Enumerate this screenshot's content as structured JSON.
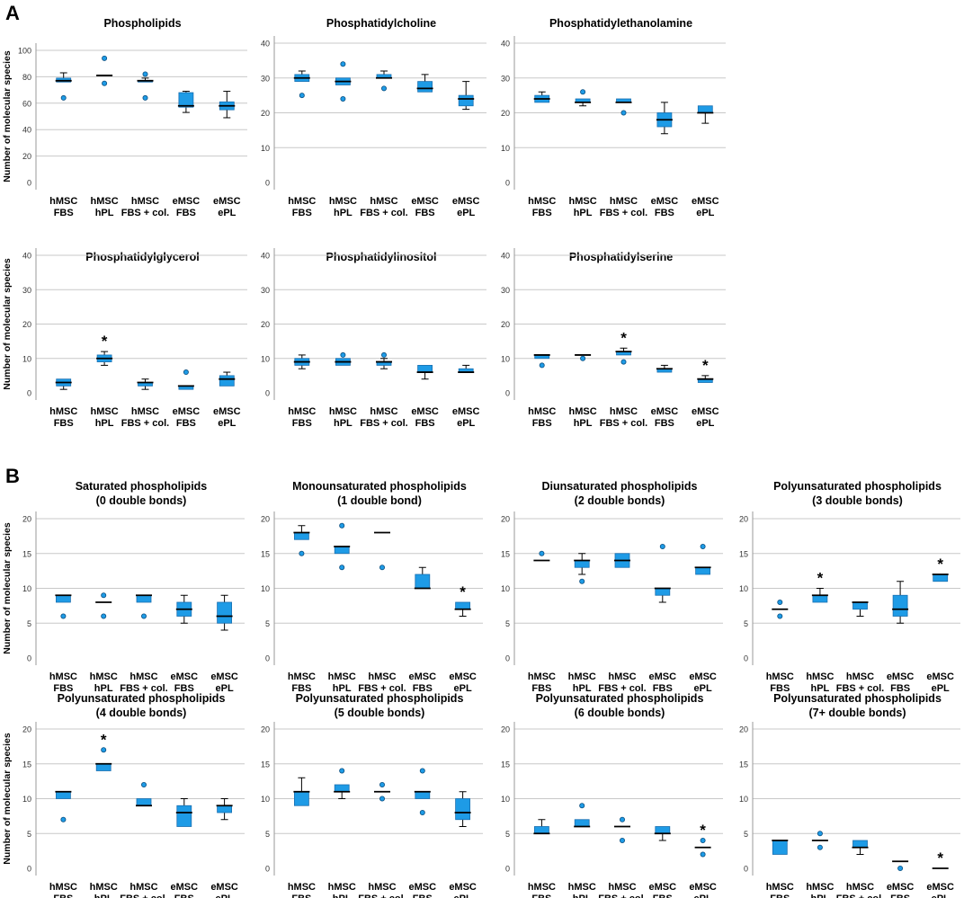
{
  "panel_labels": [
    "A",
    "B"
  ],
  "style": {
    "box_fill": "#1e9be6",
    "box_stroke": "#1a6fb0",
    "outlier_fill": "#1e9be6",
    "grid": "#c8c8c8",
    "axis": "#9a9a9a",
    "text": "#000000"
  },
  "y_axis_label": "Number of molecular species",
  "groups": [
    {
      "line1": "hMSC",
      "line2": "FBS"
    },
    {
      "line1": "hMSC",
      "line2": "hPL"
    },
    {
      "line1": "hMSC",
      "line2": "FBS + col."
    },
    {
      "line1": "eMSC",
      "line2": "FBS"
    },
    {
      "line1": "eMSC",
      "line2": "ePL"
    }
  ],
  "chart_data": [
    {
      "type": "boxplot",
      "title": [
        "Phospholipids"
      ],
      "ylim": [
        0,
        100
      ],
      "yticks": [
        0,
        20,
        40,
        60,
        80,
        100
      ],
      "boxes": [
        {
          "min": 76,
          "q1": 76,
          "median": 77,
          "q3": 79,
          "max": 83,
          "outliers": [
            64
          ]
        },
        {
          "min": 81,
          "q1": 81,
          "median": 81,
          "q3": 81,
          "max": 81,
          "outliers": [
            75,
            94
          ]
        },
        {
          "min": 76,
          "q1": 76,
          "median": 77,
          "q3": 77,
          "max": 79,
          "outliers": [
            64,
            82
          ]
        },
        {
          "min": 53,
          "q1": 57,
          "median": 58,
          "q3": 68,
          "max": 69,
          "outliers": []
        },
        {
          "min": 49,
          "q1": 55,
          "median": 58,
          "q3": 61,
          "max": 69,
          "outliers": []
        }
      ],
      "significant": []
    },
    {
      "type": "boxplot",
      "title": [
        "Phosphatidylcholine"
      ],
      "ylim": [
        0,
        40
      ],
      "yticks": [
        0,
        10,
        20,
        30,
        40
      ],
      "boxes": [
        {
          "min": 29,
          "q1": 29,
          "median": 30,
          "q3": 31,
          "max": 32,
          "outliers": [
            25
          ]
        },
        {
          "min": 28,
          "q1": 28,
          "median": 29,
          "q3": 30,
          "max": 30,
          "outliers": [
            24,
            34
          ]
        },
        {
          "min": 30,
          "q1": 30,
          "median": 30,
          "q3": 31,
          "max": 32,
          "outliers": [
            27
          ]
        },
        {
          "min": 26,
          "q1": 26,
          "median": 27,
          "q3": 29,
          "max": 31,
          "outliers": []
        },
        {
          "min": 21,
          "q1": 22,
          "median": 24,
          "q3": 25,
          "max": 29,
          "outliers": []
        }
      ],
      "significant": []
    },
    {
      "type": "boxplot",
      "title": [
        "Phosphatidylethanolamine"
      ],
      "ylim": [
        0,
        40
      ],
      "yticks": [
        0,
        10,
        20,
        30,
        40
      ],
      "boxes": [
        {
          "min": 23,
          "q1": 23,
          "median": 24,
          "q3": 25,
          "max": 26,
          "outliers": []
        },
        {
          "min": 22,
          "q1": 23,
          "median": 23,
          "q3": 24,
          "max": 24,
          "outliers": [
            26
          ]
        },
        {
          "min": 23,
          "q1": 23,
          "median": 23,
          "q3": 24,
          "max": 24,
          "outliers": [
            20
          ]
        },
        {
          "min": 14,
          "q1": 16,
          "median": 18,
          "q3": 20,
          "max": 23,
          "outliers": []
        },
        {
          "min": 17,
          "q1": 20,
          "median": 20,
          "q3": 22,
          "max": 22,
          "outliers": []
        }
      ],
      "significant": []
    },
    {
      "type": "boxplot",
      "title": [
        "Phosphatidylglycerol"
      ],
      "ylim": [
        0,
        40
      ],
      "yticks": [
        0,
        10,
        20,
        30,
        40
      ],
      "boxes": [
        {
          "min": 1,
          "q1": 2,
          "median": 3,
          "q3": 4,
          "max": 4,
          "outliers": []
        },
        {
          "min": 8,
          "q1": 9,
          "median": 10,
          "q3": 11,
          "max": 12,
          "outliers": []
        },
        {
          "min": 1,
          "q1": 2,
          "median": 3,
          "q3": 3,
          "max": 4,
          "outliers": []
        },
        {
          "min": 1,
          "q1": 1,
          "median": 2,
          "q3": 2,
          "max": 2,
          "outliers": [
            6
          ]
        },
        {
          "min": 2,
          "q1": 2,
          "median": 4,
          "q3": 5,
          "max": 6,
          "outliers": []
        }
      ],
      "significant": [
        1
      ]
    },
    {
      "type": "boxplot",
      "title": [
        "Phosphatidylinositol"
      ],
      "ylim": [
        0,
        40
      ],
      "yticks": [
        0,
        10,
        20,
        30,
        40
      ],
      "boxes": [
        {
          "min": 7,
          "q1": 8,
          "median": 9,
          "q3": 10,
          "max": 11,
          "outliers": []
        },
        {
          "min": 8,
          "q1": 8,
          "median": 9,
          "q3": 10,
          "max": 10,
          "outliers": [
            11
          ]
        },
        {
          "min": 7,
          "q1": 8,
          "median": 9,
          "q3": 9,
          "max": 10,
          "outliers": [
            11
          ]
        },
        {
          "min": 4,
          "q1": 6,
          "median": 6,
          "q3": 8,
          "max": 8,
          "outliers": []
        },
        {
          "min": 6,
          "q1": 6,
          "median": 6,
          "q3": 7,
          "max": 8,
          "outliers": []
        }
      ],
      "significant": []
    },
    {
      "type": "boxplot",
      "title": [
        "Phosphatidylserine"
      ],
      "ylim": [
        0,
        40
      ],
      "yticks": [
        0,
        10,
        20,
        30,
        40
      ],
      "boxes": [
        {
          "min": 10,
          "q1": 10,
          "median": 11,
          "q3": 11,
          "max": 11,
          "outliers": [
            8
          ]
        },
        {
          "min": 11,
          "q1": 11,
          "median": 11,
          "q3": 11,
          "max": 11,
          "outliers": [
            10
          ]
        },
        {
          "min": 11,
          "q1": 11,
          "median": 12,
          "q3": 12,
          "max": 13,
          "outliers": [
            9
          ]
        },
        {
          "min": 6,
          "q1": 6,
          "median": 7,
          "q3": 7,
          "max": 8,
          "outliers": []
        },
        {
          "min": 3,
          "q1": 3,
          "median": 4,
          "q3": 4,
          "max": 5,
          "outliers": []
        }
      ],
      "significant": [
        2,
        4
      ]
    },
    {
      "type": "boxplot",
      "title": [
        "Saturated phospholipids",
        "(0 double bonds)"
      ],
      "ylim": [
        0,
        20
      ],
      "yticks": [
        0,
        5,
        10,
        15,
        20
      ],
      "boxes": [
        {
          "min": 8,
          "q1": 8,
          "median": 9,
          "q3": 9,
          "max": 9,
          "outliers": [
            6
          ]
        },
        {
          "min": 8,
          "q1": 8,
          "median": 8,
          "q3": 8,
          "max": 8,
          "outliers": [
            6,
            9
          ]
        },
        {
          "min": 8,
          "q1": 8,
          "median": 9,
          "q3": 9,
          "max": 9,
          "outliers": [
            6
          ]
        },
        {
          "min": 5,
          "q1": 6,
          "median": 7,
          "q3": 8,
          "max": 9,
          "outliers": []
        },
        {
          "min": 4,
          "q1": 5,
          "median": 6,
          "q3": 8,
          "max": 9,
          "outliers": []
        }
      ],
      "significant": []
    },
    {
      "type": "boxplot",
      "title": [
        "Monounsaturated phospholipids",
        "(1 double bond)"
      ],
      "ylim": [
        0,
        20
      ],
      "yticks": [
        0,
        5,
        10,
        15,
        20
      ],
      "boxes": [
        {
          "min": 17,
          "q1": 17,
          "median": 18,
          "q3": 18,
          "max": 19,
          "outliers": [
            15
          ]
        },
        {
          "min": 15,
          "q1": 15,
          "median": 16,
          "q3": 16,
          "max": 16,
          "outliers": [
            13,
            19
          ]
        },
        {
          "min": 18,
          "q1": 18,
          "median": 18,
          "q3": 18,
          "max": 18,
          "outliers": [
            13
          ]
        },
        {
          "min": 10,
          "q1": 10,
          "median": 10,
          "q3": 12,
          "max": 13,
          "outliers": []
        },
        {
          "min": 6,
          "q1": 7,
          "median": 7,
          "q3": 8,
          "max": 8,
          "outliers": []
        }
      ],
      "significant": [
        4
      ]
    },
    {
      "type": "boxplot",
      "title": [
        "Diunsaturated phospholipids",
        "(2 double bonds)"
      ],
      "ylim": [
        0,
        20
      ],
      "yticks": [
        0,
        5,
        10,
        15,
        20
      ],
      "boxes": [
        {
          "min": 14,
          "q1": 14,
          "median": 14,
          "q3": 14,
          "max": 14,
          "outliers": [
            15
          ]
        },
        {
          "min": 12,
          "q1": 13,
          "median": 14,
          "q3": 14,
          "max": 15,
          "outliers": [
            11
          ]
        },
        {
          "min": 13,
          "q1": 13,
          "median": 14,
          "q3": 15,
          "max": 15,
          "outliers": []
        },
        {
          "min": 8,
          "q1": 9,
          "median": 10,
          "q3": 10,
          "max": 10,
          "outliers": [
            16
          ]
        },
        {
          "min": 12,
          "q1": 12,
          "median": 13,
          "q3": 13,
          "max": 13,
          "outliers": [
            16
          ]
        }
      ],
      "significant": []
    },
    {
      "type": "boxplot",
      "title": [
        "Polyunsaturated phospholipids",
        "(3 double bonds)"
      ],
      "ylim": [
        0,
        20
      ],
      "yticks": [
        0,
        5,
        10,
        15,
        20
      ],
      "boxes": [
        {
          "min": 7,
          "q1": 7,
          "median": 7,
          "q3": 7,
          "max": 7,
          "outliers": [
            6,
            8
          ]
        },
        {
          "min": 8,
          "q1": 8,
          "median": 9,
          "q3": 9,
          "max": 10,
          "outliers": []
        },
        {
          "min": 6,
          "q1": 7,
          "median": 8,
          "q3": 8,
          "max": 8,
          "outliers": []
        },
        {
          "min": 5,
          "q1": 6,
          "median": 7,
          "q3": 9,
          "max": 11,
          "outliers": []
        },
        {
          "min": 11,
          "q1": 11,
          "median": 12,
          "q3": 12,
          "max": 12,
          "outliers": []
        }
      ],
      "significant": [
        1,
        4
      ]
    },
    {
      "type": "boxplot",
      "title": [
        "Polyunsaturated phospholipids",
        "(4 double bonds)"
      ],
      "ylim": [
        0,
        20
      ],
      "yticks": [
        0,
        5,
        10,
        15,
        20
      ],
      "boxes": [
        {
          "min": 10,
          "q1": 10,
          "median": 11,
          "q3": 11,
          "max": 11,
          "outliers": [
            7
          ]
        },
        {
          "min": 14,
          "q1": 14,
          "median": 15,
          "q3": 15,
          "max": 15,
          "outliers": [
            17
          ]
        },
        {
          "min": 9,
          "q1": 9,
          "median": 9,
          "q3": 10,
          "max": 10,
          "outliers": [
            12
          ]
        },
        {
          "min": 6,
          "q1": 6,
          "median": 8,
          "q3": 9,
          "max": 10,
          "outliers": []
        },
        {
          "min": 7,
          "q1": 8,
          "median": 9,
          "q3": 9,
          "max": 10,
          "outliers": []
        }
      ],
      "significant": [
        1
      ]
    },
    {
      "type": "boxplot",
      "title": [
        "Polyunsaturated phospholipids",
        "(5 double bonds)"
      ],
      "ylim": [
        0,
        20
      ],
      "yticks": [
        0,
        5,
        10,
        15,
        20
      ],
      "boxes": [
        {
          "min": 9,
          "q1": 9,
          "median": 11,
          "q3": 11,
          "max": 13,
          "outliers": []
        },
        {
          "min": 10,
          "q1": 11,
          "median": 11,
          "q3": 12,
          "max": 12,
          "outliers": [
            14
          ]
        },
        {
          "min": 11,
          "q1": 11,
          "median": 11,
          "q3": 11,
          "max": 11,
          "outliers": [
            10,
            12
          ]
        },
        {
          "min": 10,
          "q1": 10,
          "median": 11,
          "q3": 11,
          "max": 11,
          "outliers": [
            8,
            14
          ]
        },
        {
          "min": 6,
          "q1": 7,
          "median": 8,
          "q3": 10,
          "max": 11,
          "outliers": []
        }
      ],
      "significant": []
    },
    {
      "type": "boxplot",
      "title": [
        "Polyunsaturated phospholipids",
        "(6 double bonds)"
      ],
      "ylim": [
        0,
        20
      ],
      "yticks": [
        0,
        5,
        10,
        15,
        20
      ],
      "boxes": [
        {
          "min": 5,
          "q1": 5,
          "median": 5,
          "q3": 6,
          "max": 7,
          "outliers": []
        },
        {
          "min": 6,
          "q1": 6,
          "median": 6,
          "q3": 7,
          "max": 7,
          "outliers": [
            9
          ]
        },
        {
          "min": 6,
          "q1": 6,
          "median": 6,
          "q3": 6,
          "max": 6,
          "outliers": [
            4,
            7
          ]
        },
        {
          "min": 4,
          "q1": 5,
          "median": 5,
          "q3": 6,
          "max": 6,
          "outliers": []
        },
        {
          "min": 3,
          "q1": 3,
          "median": 3,
          "q3": 3,
          "max": 3,
          "outliers": [
            2,
            4
          ]
        }
      ],
      "significant": [
        4
      ]
    },
    {
      "type": "boxplot",
      "title": [
        "Polyunsaturated phospholipids",
        "(7+ double bonds)"
      ],
      "ylim": [
        0,
        20
      ],
      "yticks": [
        0,
        5,
        10,
        15,
        20
      ],
      "boxes": [
        {
          "min": 2,
          "q1": 2,
          "median": 4,
          "q3": 4,
          "max": 4,
          "outliers": []
        },
        {
          "min": 4,
          "q1": 4,
          "median": 4,
          "q3": 4,
          "max": 4,
          "outliers": [
            3,
            5
          ]
        },
        {
          "min": 2,
          "q1": 3,
          "median": 3,
          "q3": 4,
          "max": 4,
          "outliers": []
        },
        {
          "min": 1,
          "q1": 1,
          "median": 1,
          "q3": 1,
          "max": 1,
          "outliers": [
            0
          ]
        },
        {
          "min": 0,
          "q1": 0,
          "median": 0,
          "q3": 0,
          "max": 0,
          "outliers": []
        }
      ],
      "significant": [
        4
      ]
    }
  ]
}
